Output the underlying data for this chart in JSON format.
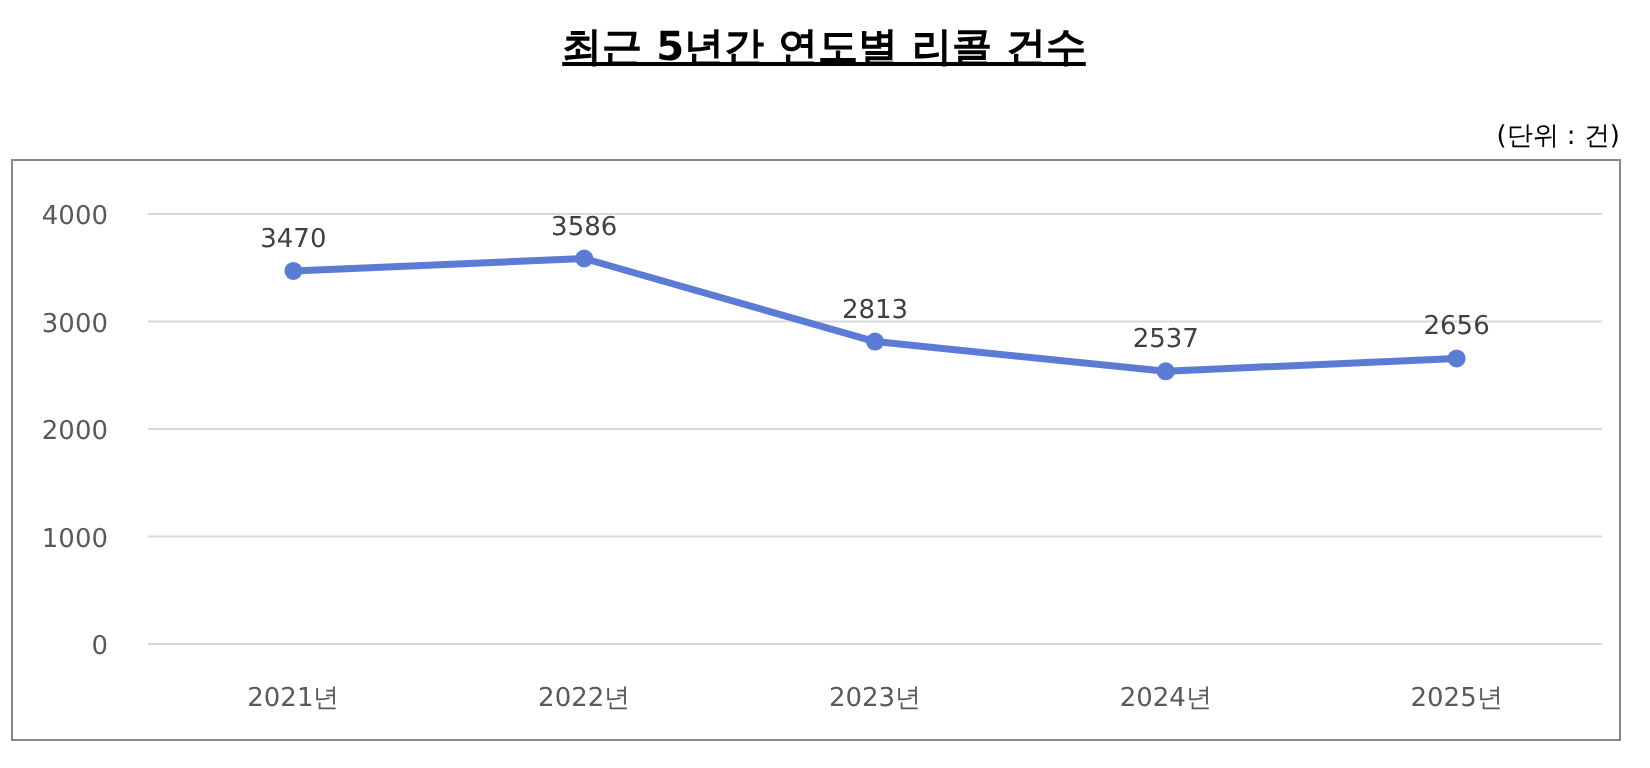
{
  "chart_data": {
    "type": "line",
    "title": "최근 5년간 연도별 리콜 건수",
    "annotations": [
      "(단위 : 건)"
    ],
    "categories": [
      "2021년",
      "2022년",
      "2023년",
      "2024년",
      "2025년"
    ],
    "series": [
      {
        "color": "#5b7bd5",
        "values": [
          3470,
          3586,
          2813,
          2537,
          2656
        ]
      }
    ],
    "ylim": [
      0,
      4000
    ],
    "yticks": [
      0,
      1000,
      2000,
      3000,
      4000
    ],
    "grid": "y",
    "marker": "circle",
    "line_style": "solid",
    "data_labels": true
  }
}
